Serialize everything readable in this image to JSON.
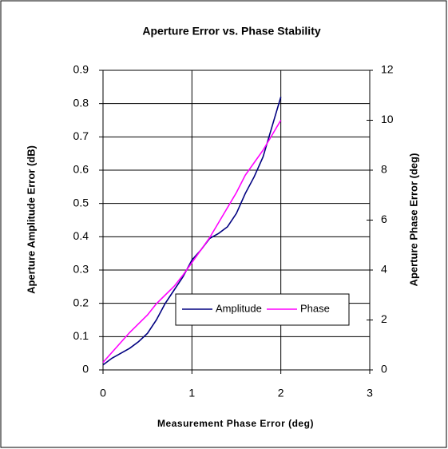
{
  "chart_data": {
    "type": "line",
    "title": "Aperture Error vs. Phase Stability",
    "xlabel": "Measurement Phase Error (deg)",
    "ylabel": "Aperture Amplitude Error (dB)",
    "y2label": "Aperture Phase Error (deg)",
    "x": [
      0,
      0.1,
      0.2,
      0.3,
      0.4,
      0.5,
      0.6,
      0.7,
      0.8,
      0.9,
      1.0,
      1.1,
      1.2,
      1.3,
      1.4,
      1.5,
      1.6,
      1.7,
      1.8,
      1.9,
      2.0
    ],
    "series": [
      {
        "name": "Amplitude",
        "color": "#000080",
        "values": [
          0.015,
          0.035,
          0.05,
          0.065,
          0.085,
          0.11,
          0.15,
          0.2,
          0.24,
          0.28,
          0.33,
          0.36,
          0.395,
          0.41,
          0.43,
          0.47,
          0.53,
          0.58,
          0.64,
          0.73,
          0.82
        ]
      },
      {
        "name": "Phase",
        "color": "#ff00ff",
        "axis": "y2",
        "values": [
          0.3,
          0.7,
          1.1,
          1.5,
          1.85,
          2.2,
          2.65,
          3.0,
          3.35,
          3.8,
          4.3,
          4.8,
          5.3,
          5.9,
          6.5,
          7.1,
          7.8,
          8.3,
          8.8,
          9.4,
          10.0
        ]
      }
    ],
    "xlim": [
      0,
      3
    ],
    "xticks": [
      0,
      1,
      2,
      3
    ],
    "ylim": [
      0,
      0.9
    ],
    "yticks": [
      0,
      0.1,
      0.2,
      0.3,
      0.4,
      0.5,
      0.6,
      0.7,
      0.8,
      0.9
    ],
    "y2lim": [
      0,
      12
    ],
    "y2ticks": [
      0,
      2,
      4,
      6,
      8,
      10,
      12
    ],
    "grid": true
  }
}
